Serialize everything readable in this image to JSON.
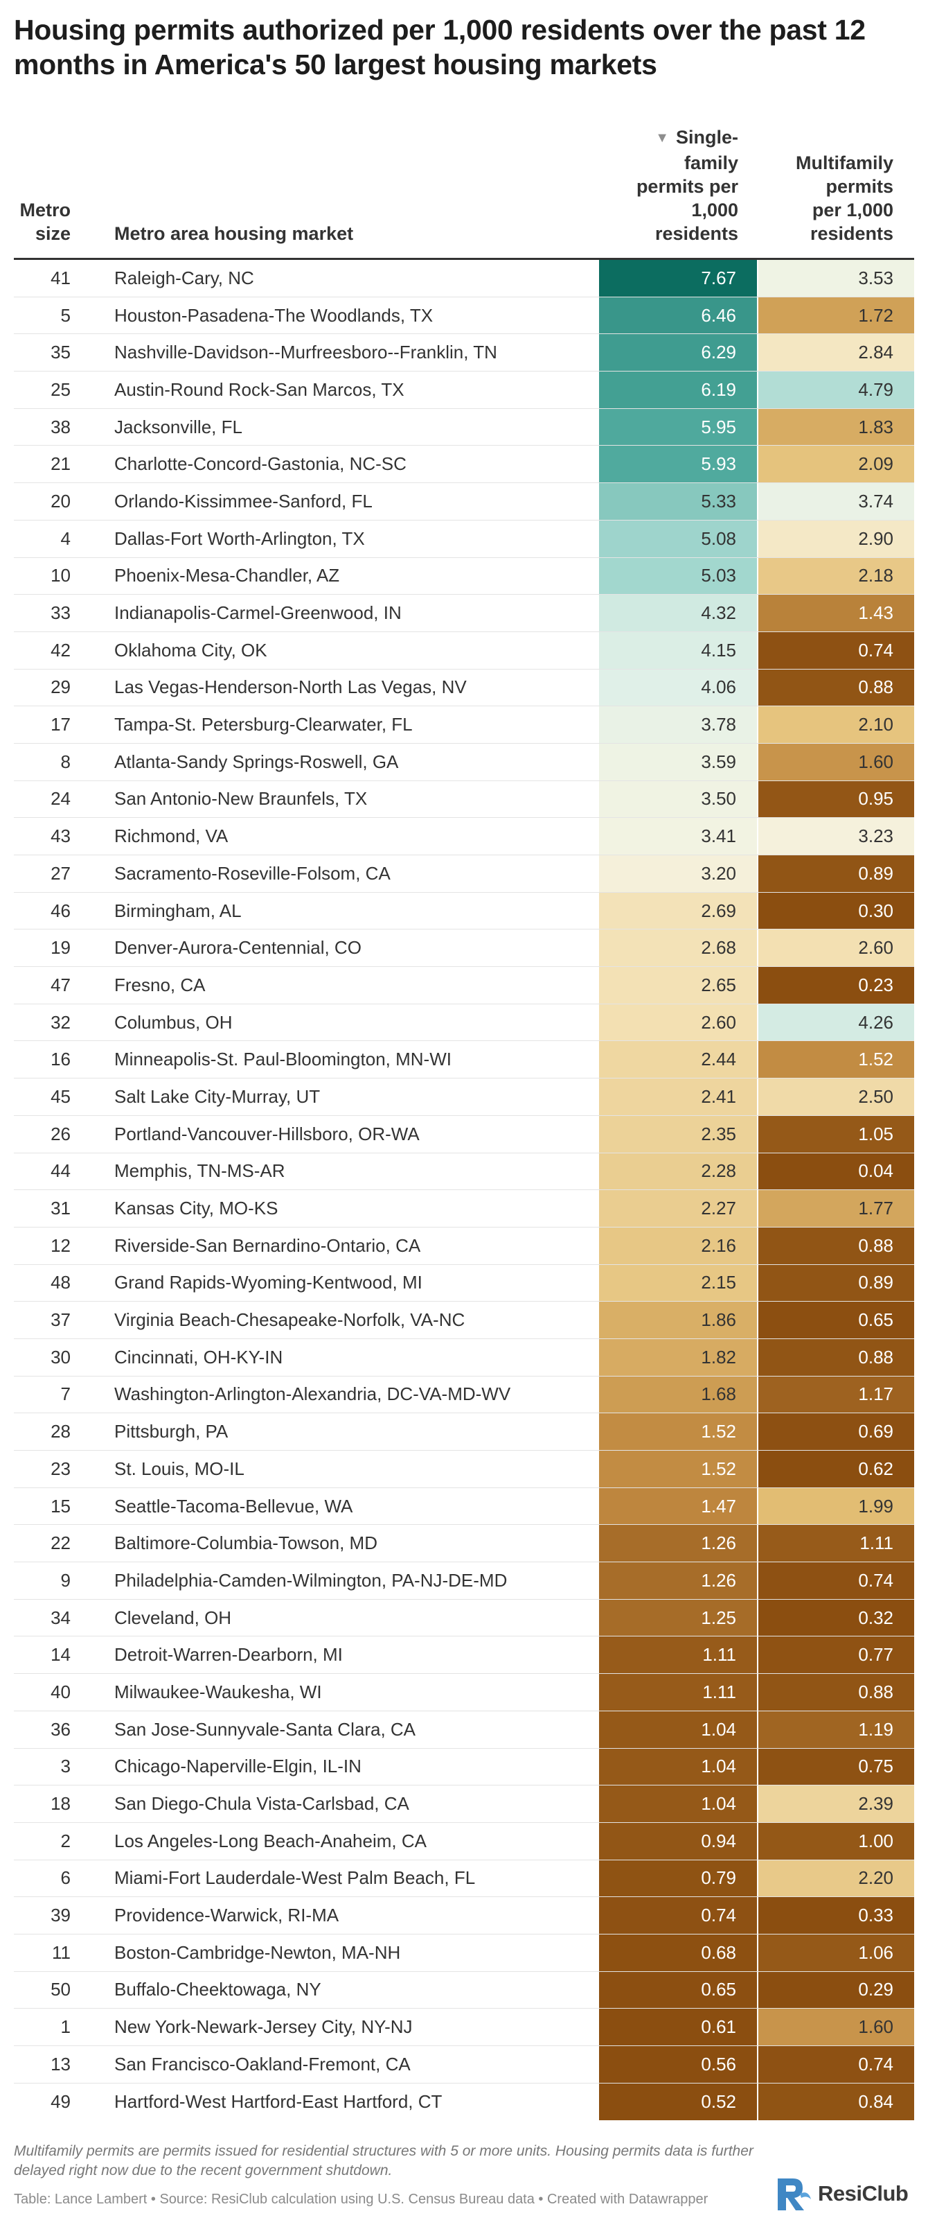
{
  "title": "Housing permits authorized per 1,000 residents over the past 12 months in America's 50 largest housing markets",
  "header": {
    "size": "Metro\nsize",
    "metro": "Metro area housing market",
    "single": "Single-\nfamily\npermits per\n1,000\nresidents",
    "multi": "Multifamily\npermits\nper 1,000\nresidents",
    "sort_icon": "▼"
  },
  "colors": {
    "text_dark": "#222222",
    "scale_teal_dark": "#0b6c5f",
    "scale_light": "#f4f3e6",
    "scale_brown": "#8b4e10"
  },
  "rows": [
    {
      "size": "41",
      "metro": "Raleigh-Cary, NC",
      "single": "7.67",
      "multi": "3.53"
    },
    {
      "size": "5",
      "metro": "Houston-Pasadena-The Woodlands, TX",
      "single": "6.46",
      "multi": "1.72"
    },
    {
      "size": "35",
      "metro": "Nashville-Davidson--Murfreesboro--Franklin, TN",
      "single": "6.29",
      "multi": "2.84"
    },
    {
      "size": "25",
      "metro": "Austin-Round Rock-San Marcos, TX",
      "single": "6.19",
      "multi": "4.79"
    },
    {
      "size": "38",
      "metro": "Jacksonville, FL",
      "single": "5.95",
      "multi": "1.83"
    },
    {
      "size": "21",
      "metro": "Charlotte-Concord-Gastonia, NC-SC",
      "single": "5.93",
      "multi": "2.09"
    },
    {
      "size": "20",
      "metro": "Orlando-Kissimmee-Sanford, FL",
      "single": "5.33",
      "multi": "3.74"
    },
    {
      "size": "4",
      "metro": "Dallas-Fort Worth-Arlington, TX",
      "single": "5.08",
      "multi": "2.90"
    },
    {
      "size": "10",
      "metro": "Phoenix-Mesa-Chandler, AZ",
      "single": "5.03",
      "multi": "2.18"
    },
    {
      "size": "33",
      "metro": "Indianapolis-Carmel-Greenwood, IN",
      "single": "4.32",
      "multi": "1.43"
    },
    {
      "size": "42",
      "metro": "Oklahoma City, OK",
      "single": "4.15",
      "multi": "0.74"
    },
    {
      "size": "29",
      "metro": "Las Vegas-Henderson-North Las Vegas, NV",
      "single": "4.06",
      "multi": "0.88"
    },
    {
      "size": "17",
      "metro": "Tampa-St. Petersburg-Clearwater, FL",
      "single": "3.78",
      "multi": "2.10"
    },
    {
      "size": "8",
      "metro": "Atlanta-Sandy Springs-Roswell, GA",
      "single": "3.59",
      "multi": "1.60"
    },
    {
      "size": "24",
      "metro": "San Antonio-New Braunfels, TX",
      "single": "3.50",
      "multi": "0.95"
    },
    {
      "size": "43",
      "metro": "Richmond, VA",
      "single": "3.41",
      "multi": "3.23"
    },
    {
      "size": "27",
      "metro": "Sacramento-Roseville-Folsom, CA",
      "single": "3.20",
      "multi": "0.89"
    },
    {
      "size": "46",
      "metro": "Birmingham, AL",
      "single": "2.69",
      "multi": "0.30"
    },
    {
      "size": "19",
      "metro": "Denver-Aurora-Centennial, CO",
      "single": "2.68",
      "multi": "2.60"
    },
    {
      "size": "47",
      "metro": "Fresno, CA",
      "single": "2.65",
      "multi": "0.23"
    },
    {
      "size": "32",
      "metro": "Columbus, OH",
      "single": "2.60",
      "multi": "4.26"
    },
    {
      "size": "16",
      "metro": "Minneapolis-St. Paul-Bloomington, MN-WI",
      "single": "2.44",
      "multi": "1.52"
    },
    {
      "size": "45",
      "metro": "Salt Lake City-Murray, UT",
      "single": "2.41",
      "multi": "2.50"
    },
    {
      "size": "26",
      "metro": "Portland-Vancouver-Hillsboro, OR-WA",
      "single": "2.35",
      "multi": "1.05"
    },
    {
      "size": "44",
      "metro": "Memphis, TN-MS-AR",
      "single": "2.28",
      "multi": "0.04"
    },
    {
      "size": "31",
      "metro": "Kansas City, MO-KS",
      "single": "2.27",
      "multi": "1.77"
    },
    {
      "size": "12",
      "metro": "Riverside-San Bernardino-Ontario, CA",
      "single": "2.16",
      "multi": "0.88"
    },
    {
      "size": "48",
      "metro": "Grand Rapids-Wyoming-Kentwood, MI",
      "single": "2.15",
      "multi": "0.89"
    },
    {
      "size": "37",
      "metro": "Virginia Beach-Chesapeake-Norfolk, VA-NC",
      "single": "1.86",
      "multi": "0.65"
    },
    {
      "size": "30",
      "metro": "Cincinnati, OH-KY-IN",
      "single": "1.82",
      "multi": "0.88"
    },
    {
      "size": "7",
      "metro": "Washington-Arlington-Alexandria, DC-VA-MD-WV",
      "single": "1.68",
      "multi": "1.17"
    },
    {
      "size": "28",
      "metro": "Pittsburgh, PA",
      "single": "1.52",
      "multi": "0.69"
    },
    {
      "size": "23",
      "metro": "St. Louis, MO-IL",
      "single": "1.52",
      "multi": "0.62"
    },
    {
      "size": "15",
      "metro": "Seattle-Tacoma-Bellevue, WA",
      "single": "1.47",
      "multi": "1.99"
    },
    {
      "size": "22",
      "metro": "Baltimore-Columbia-Towson, MD",
      "single": "1.26",
      "multi": "1.11"
    },
    {
      "size": "9",
      "metro": "Philadelphia-Camden-Wilmington, PA-NJ-DE-MD",
      "single": "1.26",
      "multi": "0.74"
    },
    {
      "size": "34",
      "metro": "Cleveland, OH",
      "single": "1.25",
      "multi": "0.32"
    },
    {
      "size": "14",
      "metro": "Detroit-Warren-Dearborn, MI",
      "single": "1.11",
      "multi": "0.77"
    },
    {
      "size": "40",
      "metro": "Milwaukee-Waukesha, WI",
      "single": "1.11",
      "multi": "0.88"
    },
    {
      "size": "36",
      "metro": "San Jose-Sunnyvale-Santa Clara, CA",
      "single": "1.04",
      "multi": "1.19"
    },
    {
      "size": "3",
      "metro": "Chicago-Naperville-Elgin, IL-IN",
      "single": "1.04",
      "multi": "0.75"
    },
    {
      "size": "18",
      "metro": "San Diego-Chula Vista-Carlsbad, CA",
      "single": "1.04",
      "multi": "2.39"
    },
    {
      "size": "2",
      "metro": "Los Angeles-Long Beach-Anaheim, CA",
      "single": "0.94",
      "multi": "1.00"
    },
    {
      "size": "6",
      "metro": "Miami-Fort Lauderdale-West Palm Beach, FL",
      "single": "0.79",
      "multi": "2.20"
    },
    {
      "size": "39",
      "metro": "Providence-Warwick, RI-MA",
      "single": "0.74",
      "multi": "0.33"
    },
    {
      "size": "11",
      "metro": "Boston-Cambridge-Newton, MA-NH",
      "single": "0.68",
      "multi": "1.06"
    },
    {
      "size": "50",
      "metro": "Buffalo-Cheektowaga, NY",
      "single": "0.65",
      "multi": "0.29"
    },
    {
      "size": "1",
      "metro": "New York-Newark-Jersey City, NY-NJ",
      "single": "0.61",
      "multi": "1.60"
    },
    {
      "size": "13",
      "metro": "San Francisco-Oakland-Fremont, CA",
      "single": "0.56",
      "multi": "0.74"
    },
    {
      "size": "49",
      "metro": "Hartford-West Hartford-East Hartford, CT",
      "single": "0.52",
      "multi": "0.84"
    }
  ],
  "footnote": "Multifamily permits are permits issued for residential structures with 5 or more units. Housing permits data is further delayed right now due to the recent government shutdown.",
  "credit": "Table: Lance Lambert • Source: ResiClub calculation using U.S. Census Bureau data • Created with Datawrapper",
  "logo": {
    "text": "ResiClub",
    "icon": "resiclub-logo-icon"
  }
}
